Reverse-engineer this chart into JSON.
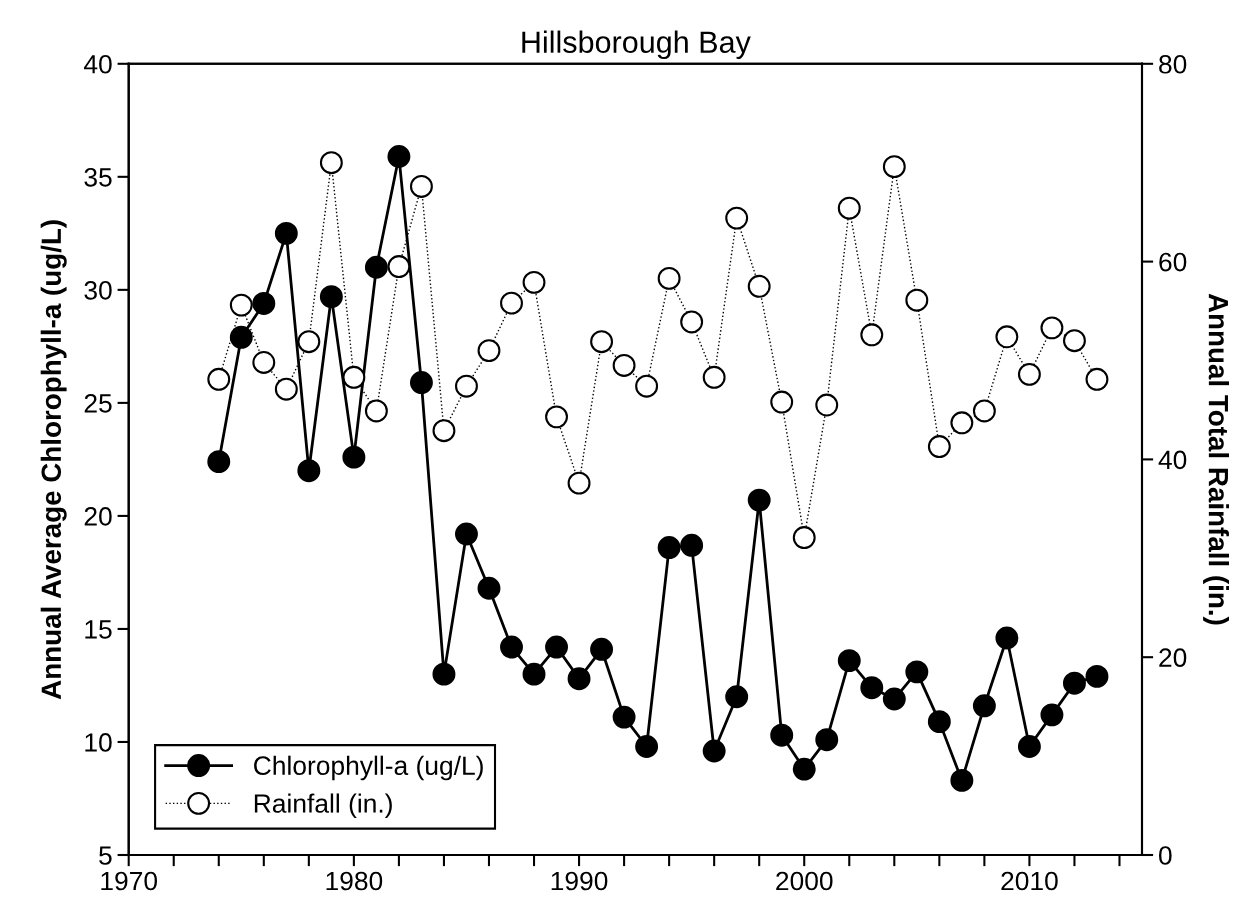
{
  "chart_data": {
    "type": "line",
    "title": "Hillsborough Bay",
    "ylabel": "Annual Average Chlorophyll-a (ug/L)",
    "y2label": "Annual Total Rainfall (in.)",
    "x": [
      1974,
      1975,
      1976,
      1977,
      1978,
      1979,
      1980,
      1981,
      1982,
      1983,
      1984,
      1985,
      1986,
      1987,
      1988,
      1989,
      1990,
      1991,
      1992,
      1993,
      1994,
      1995,
      1996,
      1997,
      1998,
      1999,
      2000,
      2001,
      2002,
      2003,
      2004,
      2005,
      2006,
      2007,
      2008,
      2009,
      2010,
      2011,
      2012,
      2013
    ],
    "series": [
      {
        "name": "Chlorophyll-a (ug/L)",
        "color": "#000000",
        "marker": "circle",
        "line_style": "solid",
        "values": [
          22.4,
          27.9,
          29.4,
          32.5,
          22.0,
          29.7,
          22.6,
          31.0,
          35.9,
          25.9,
          13.0,
          19.2,
          16.8,
          14.2,
          13.0,
          14.2,
          12.8,
          14.1,
          11.1,
          9.8,
          18.6,
          18.7,
          9.6,
          12.0,
          20.7,
          10.3,
          8.8,
          10.1,
          13.6,
          12.4,
          11.9,
          13.1,
          10.9,
          8.3,
          11.6,
          14.6,
          9.8,
          11.2,
          12.6,
          12.9
        ]
      },
      {
        "name": "Rainfall (in.)",
        "color": "#000000",
        "marker": "circle",
        "line_style": "dotted",
        "axis": "y2",
        "values": [
          48.1,
          55.6,
          49.8,
          47.1,
          51.9,
          70.0,
          48.3,
          44.9,
          59.5,
          67.6,
          42.9,
          47.4,
          51.0,
          55.8,
          57.9,
          44.3,
          37.6,
          51.9,
          49.5,
          47.4,
          58.3,
          53.9,
          48.3,
          64.4,
          57.5,
          45.8,
          32.1,
          45.5,
          65.4,
          52.6,
          69.6,
          56.1,
          41.3,
          43.7,
          44.9,
          52.4,
          48.6,
          53.3,
          52.0,
          48.1
        ]
      }
    ],
    "xlim": [
      1970,
      2015
    ],
    "xticks": [
      1970,
      {
        "value": 1972,
        "label": null
      },
      {
        "value": 1974,
        "label": null
      },
      {
        "value": 1976,
        "label": null
      },
      {
        "value": 1978,
        "label": null
      },
      1980,
      {
        "value": 1982,
        "label": null
      },
      {
        "value": 1984,
        "label": null
      },
      {
        "value": 1986,
        "label": null
      },
      {
        "value": 1988,
        "label": null
      },
      1990,
      {
        "value": 1992,
        "label": null
      },
      {
        "value": 1994,
        "label": null
      },
      {
        "value": 1996,
        "label": null
      },
      {
        "value": 1998,
        "label": null
      },
      2000,
      {
        "value": 2002,
        "label": null
      },
      {
        "value": 2004,
        "label": null
      },
      {
        "value": 2006,
        "label": null
      },
      {
        "value": 2008,
        "label": null
      },
      2010,
      {
        "value": 2012,
        "label": null
      },
      {
        "value": 2014,
        "label": null
      }
    ],
    "ylim": [
      5,
      40
    ],
    "yticks": [
      5,
      10,
      15,
      20,
      25,
      30,
      35,
      40
    ],
    "y2lim": [
      0,
      80
    ],
    "y2ticks": [
      0,
      20,
      40,
      60,
      80
    ],
    "legend": "bottom left",
    "grid": false
  }
}
